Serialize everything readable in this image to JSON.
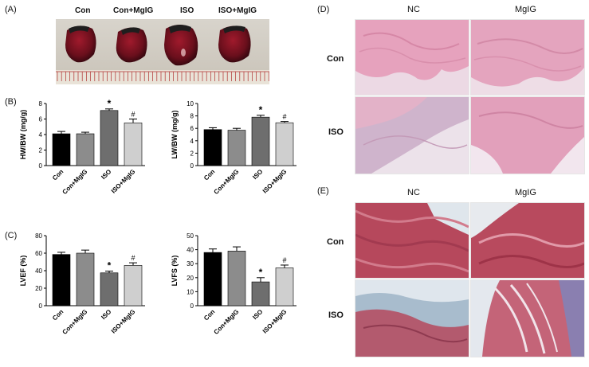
{
  "panels": {
    "A": "(A)",
    "B": "(B)",
    "C": "(C)",
    "D": "(D)",
    "E": "(E)"
  },
  "photo": {
    "labels": [
      "Con",
      "Con+MgIG",
      "ISO",
      "ISO+MgIG"
    ]
  },
  "histology": {
    "col_labels": [
      "NC",
      "MgIG"
    ],
    "row_labels": [
      "Con",
      "ISO"
    ]
  },
  "colors": {
    "bars": [
      "#000000",
      "#8c8c8c",
      "#6e6e6e",
      "#cfcfcf"
    ],
    "he_stain": "#e8a3b8",
    "masson_red": "#b83a4e",
    "masson_blue": "#9fb5c8"
  },
  "chart_data": [
    {
      "type": "bar",
      "categories": [
        "Con",
        "Con+MgIG",
        "ISO",
        "ISO+MgIG"
      ],
      "values": [
        4.1,
        4.1,
        7.1,
        5.5
      ],
      "errors": [
        0.3,
        0.2,
        0.2,
        0.5
      ],
      "annotations": [
        "",
        "",
        "*",
        "#"
      ],
      "ylabel": "HW/BW (mg/g)",
      "ylim": [
        0,
        8
      ],
      "yticks": [
        0,
        2,
        4,
        6,
        8
      ]
    },
    {
      "type": "bar",
      "categories": [
        "Con",
        "Con+MgIG",
        "ISO",
        "ISO+MgIG"
      ],
      "values": [
        5.8,
        5.7,
        7.8,
        6.9
      ],
      "errors": [
        0.3,
        0.3,
        0.3,
        0.2
      ],
      "annotations": [
        "",
        "",
        "*",
        "#"
      ],
      "ylabel": "LW/BW (mg/g)",
      "ylim": [
        0,
        10
      ],
      "yticks": [
        0,
        2,
        4,
        6,
        8,
        10
      ]
    },
    {
      "type": "bar",
      "categories": [
        "Con",
        "Con+MgIG",
        "ISO",
        "ISO+MgIG"
      ],
      "values": [
        58.5,
        60,
        37.5,
        46
      ],
      "errors": [
        2.5,
        3.5,
        2,
        3
      ],
      "annotations": [
        "",
        "",
        "*",
        "#"
      ],
      "ylabel": "LVEF (%)",
      "ylim": [
        0,
        80
      ],
      "yticks": [
        0,
        20,
        40,
        60,
        80
      ]
    },
    {
      "type": "bar",
      "categories": [
        "Con",
        "Con+MgIG",
        "ISO",
        "ISO+MgIG"
      ],
      "values": [
        38,
        39,
        17,
        27
      ],
      "errors": [
        2.5,
        3,
        3,
        2
      ],
      "annotations": [
        "",
        "",
        "*",
        "#"
      ],
      "ylabel": "LVFS (%)",
      "ylim": [
        0,
        50
      ],
      "yticks": [
        0,
        10,
        20,
        30,
        40,
        50
      ]
    }
  ]
}
